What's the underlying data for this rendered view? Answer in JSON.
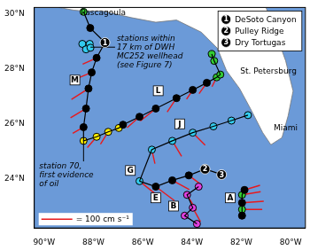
{
  "chart_data": {
    "type": "map",
    "xlim": [
      -90.4,
      -79.4
    ],
    "ylim": [
      22.2,
      30.25
    ],
    "xticks": [
      {
        "value": -90,
        "label": "90°W"
      },
      {
        "value": -88,
        "label": "88°W"
      },
      {
        "value": -86,
        "label": "86°W"
      },
      {
        "value": -84,
        "label": "84°W"
      },
      {
        "value": -82,
        "label": "82°W"
      },
      {
        "value": -80,
        "label": "80°W"
      }
    ],
    "yticks": [
      {
        "value": 24,
        "label": "24°N"
      },
      {
        "value": 26,
        "label": "26°N"
      },
      {
        "value": 28,
        "label": "28°N"
      },
      {
        "value": 30,
        "label": "30°N"
      }
    ],
    "grid": false,
    "land": [
      [
        -89.4,
        30.25
      ],
      [
        -88.8,
        30.15
      ],
      [
        -88.4,
        30.12
      ],
      [
        -87.63,
        30.12
      ],
      [
        -86.47,
        29.88
      ],
      [
        -85.47,
        29.71
      ],
      [
        -84.63,
        29.79
      ],
      [
        -83.63,
        29.35
      ],
      [
        -82.97,
        28.76
      ],
      [
        -82.6,
        27.94
      ],
      [
        -82.07,
        27.29
      ],
      [
        -81.63,
        26.56
      ],
      [
        -81.13,
        25.68
      ],
      [
        -80.8,
        25.24
      ],
      [
        -80.35,
        25.5
      ],
      [
        -80.1,
        26.3
      ],
      [
        -79.9,
        27.2
      ],
      [
        -80.2,
        28.3
      ],
      [
        -80.6,
        29.3
      ],
      [
        -81.0,
        30.25
      ]
    ],
    "tracks": [
      [
        [
          -88.4,
          30.09
        ],
        [
          -88.13,
          29.5
        ],
        [
          -87.53,
          28.97
        ]
      ],
      [
        [
          -87.53,
          28.97
        ],
        [
          -87.87,
          28.41
        ],
        [
          -88.07,
          27.88
        ],
        [
          -88.2,
          27.29
        ],
        [
          -88.3,
          26.56
        ],
        [
          -88.4,
          25.88
        ],
        [
          -88.4,
          25.38
        ]
      ],
      [
        [
          -88.4,
          25.38
        ],
        [
          -87.87,
          25.53
        ],
        [
          -87.4,
          25.71
        ],
        [
          -86.97,
          25.85
        ],
        [
          -86.8,
          25.97
        ],
        [
          -86.13,
          26.26
        ],
        [
          -85.47,
          26.56
        ],
        [
          -84.63,
          26.94
        ],
        [
          -83.97,
          27.24
        ],
        [
          -83.4,
          27.5
        ],
        [
          -83.0,
          27.7
        ],
        [
          -82.85,
          27.8
        ]
      ],
      [
        [
          -82.85,
          27.8
        ],
        [
          -83.1,
          28.3
        ],
        [
          -83.2,
          28.55
        ]
      ],
      [
        [
          -86.13,
          23.91
        ],
        [
          -85.63,
          25.06
        ],
        [
          -84.8,
          25.38
        ],
        [
          -83.97,
          25.68
        ],
        [
          -83.13,
          25.91
        ],
        [
          -82.4,
          26.12
        ],
        [
          -81.73,
          26.32
        ]
      ],
      [
        [
          -86.13,
          23.91
        ],
        [
          -85.47,
          23.71
        ],
        [
          -84.8,
          23.94
        ],
        [
          -84.13,
          24.12
        ],
        [
          -83.47,
          24.35
        ],
        [
          -82.8,
          24.15
        ]
      ],
      [
        [
          -83.73,
          23.71
        ],
        [
          -84.2,
          23.41
        ],
        [
          -83.97,
          22.94
        ],
        [
          -84.3,
          22.65
        ],
        [
          -83.8,
          22.35
        ]
      ],
      [
        [
          -81.87,
          23.59
        ],
        [
          -81.97,
          23.41
        ],
        [
          -81.97,
          23.12
        ],
        [
          -81.97,
          22.88
        ],
        [
          -81.97,
          22.65
        ]
      ]
    ],
    "stations": [
      {
        "color": "#000000",
        "marker": "circle",
        "points": [
          [
            -88.13,
            29.5
          ],
          [
            -87.87,
            28.41
          ],
          [
            -88.07,
            27.88
          ],
          [
            -88.2,
            27.29
          ],
          [
            -88.3,
            26.56
          ],
          [
            -88.4,
            25.88
          ],
          [
            -86.8,
            25.97
          ],
          [
            -86.13,
            26.26
          ],
          [
            -85.47,
            26.56
          ],
          [
            -84.63,
            26.94
          ],
          [
            -83.97,
            27.24
          ],
          [
            -83.4,
            27.5
          ],
          [
            -85.47,
            23.71
          ],
          [
            -84.8,
            23.94
          ],
          [
            -84.13,
            24.12
          ],
          [
            -81.87,
            23.59
          ],
          [
            -81.97,
            23.12
          ],
          [
            -81.97,
            22.65
          ]
        ]
      },
      {
        "color": "#33cc33",
        "marker": "circle",
        "points": [
          [
            -88.4,
            30.09
          ],
          [
            -83.0,
            27.7
          ],
          [
            -82.85,
            27.8
          ],
          [
            -83.1,
            28.3
          ],
          [
            -83.2,
            28.55
          ],
          [
            -81.97,
            23.41
          ],
          [
            -81.97,
            22.88
          ]
        ]
      },
      {
        "color": "#ffee00",
        "marker": "circle",
        "points": [
          [
            -87.87,
            25.53
          ],
          [
            -87.4,
            25.71
          ],
          [
            -86.97,
            25.85
          ]
        ]
      },
      {
        "color": "#33ccee",
        "marker": "circle",
        "points": [
          [
            -85.63,
            25.06
          ],
          [
            -84.8,
            25.38
          ],
          [
            -83.97,
            25.68
          ],
          [
            -83.13,
            25.91
          ],
          [
            -82.4,
            26.12
          ],
          [
            -81.73,
            26.32
          ],
          [
            -88.3,
            28.85
          ],
          [
            -88.45,
            28.92
          ],
          [
            -88.15,
            28.92
          ],
          [
            -88.3,
            28.72
          ],
          [
            -88.12,
            28.78
          ]
        ]
      },
      {
        "color": "#e040e0",
        "marker": "circle",
        "points": [
          [
            -83.73,
            23.71
          ],
          [
            -84.2,
            23.41
          ],
          [
            -83.97,
            22.94
          ],
          [
            -84.3,
            22.65
          ],
          [
            -83.8,
            22.35
          ]
        ]
      },
      {
        "color": "#ffee00",
        "marker": "circle_x",
        "points": [
          [
            -88.4,
            25.38
          ]
        ]
      },
      {
        "color": "#33ccee",
        "marker": "circle_x",
        "points": [
          [
            -86.13,
            23.91
          ]
        ]
      }
    ],
    "sites": [
      {
        "id": 1,
        "name": "DeSoto Canyon",
        "lon": -87.53,
        "lat": 28.97
      },
      {
        "id": 2,
        "name": "Pulley Ridge",
        "lon": -83.47,
        "lat": 24.35
      },
      {
        "id": 3,
        "name": "Dry Tortugas",
        "lon": -82.8,
        "lat": 24.15
      }
    ],
    "velocity_vectors": [
      [
        -87.87,
        28.41,
        -45,
        -20
      ],
      [
        -88.07,
        27.88,
        -60,
        -25
      ],
      [
        -88.2,
        27.29,
        -55,
        -35
      ],
      [
        -88.3,
        26.56,
        -50,
        -30
      ],
      [
        -88.4,
        25.88,
        -35,
        -20
      ],
      [
        -87.87,
        25.53,
        -30,
        -35
      ],
      [
        -87.4,
        25.71,
        -25,
        -40
      ],
      [
        -86.13,
        26.26,
        -40,
        -35
      ],
      [
        -85.47,
        26.56,
        -50,
        -40
      ],
      [
        -84.63,
        26.94,
        -30,
        -45
      ],
      [
        -83.97,
        27.24,
        -20,
        -30
      ],
      [
        -83.4,
        27.5,
        -25,
        -35
      ],
      [
        -83.0,
        27.7,
        -15,
        -30
      ],
      [
        -85.63,
        25.06,
        10,
        -45
      ],
      [
        -84.8,
        25.38,
        30,
        -50
      ],
      [
        -83.97,
        25.68,
        40,
        -40
      ],
      [
        -86.13,
        23.91,
        50,
        -40
      ],
      [
        -85.47,
        23.71,
        60,
        -45
      ],
      [
        -84.8,
        23.94,
        55,
        -30
      ],
      [
        -84.13,
        24.12,
        40,
        -30
      ],
      [
        -84.2,
        23.41,
        30,
        -50
      ],
      [
        -83.97,
        22.94,
        25,
        -45
      ],
      [
        -81.87,
        23.59,
        50,
        15
      ],
      [
        -81.97,
        23.41,
        60,
        10
      ],
      [
        -81.97,
        23.12,
        70,
        5
      ],
      [
        -81.97,
        22.88,
        65,
        0
      ]
    ],
    "vector_scale": {
      "value": 100,
      "label": "= 100 cm s⁻¹"
    },
    "labels": [
      {
        "text": "Pascagoula",
        "lon": -87.6,
        "lat": 30.05
      },
      {
        "text": "St. Petersburg",
        "lon": -80.9,
        "lat": 27.9
      },
      {
        "text": "Miami",
        "lon": -80.2,
        "lat": 25.85
      }
    ],
    "transects": [
      {
        "text": "M",
        "lon": -88.75,
        "lat": 27.6
      },
      {
        "text": "L",
        "lon": -85.37,
        "lat": 27.21
      },
      {
        "text": "J",
        "lon": -84.5,
        "lat": 26.0
      },
      {
        "text": "G",
        "lon": -86.5,
        "lat": 24.3
      },
      {
        "text": "E",
        "lon": -85.47,
        "lat": 23.3
      },
      {
        "text": "B",
        "lon": -84.75,
        "lat": 23.0
      },
      {
        "text": "A",
        "lon": -82.45,
        "lat": 23.3
      }
    ],
    "annotations": [
      {
        "lines": [
          "stations within",
          "17 km of DWH",
          "MC252 wellhead",
          "(see Figure 7)"
        ],
        "lon": -87.05,
        "lat": 29.26,
        "target": [
          -88.12,
          28.8
        ]
      },
      {
        "lines": [
          "station 70,",
          "first evidence",
          "of oil"
        ],
        "lon": -90.2,
        "lat": 24.6,
        "target": [
          -88.4,
          25.38
        ]
      }
    ]
  }
}
